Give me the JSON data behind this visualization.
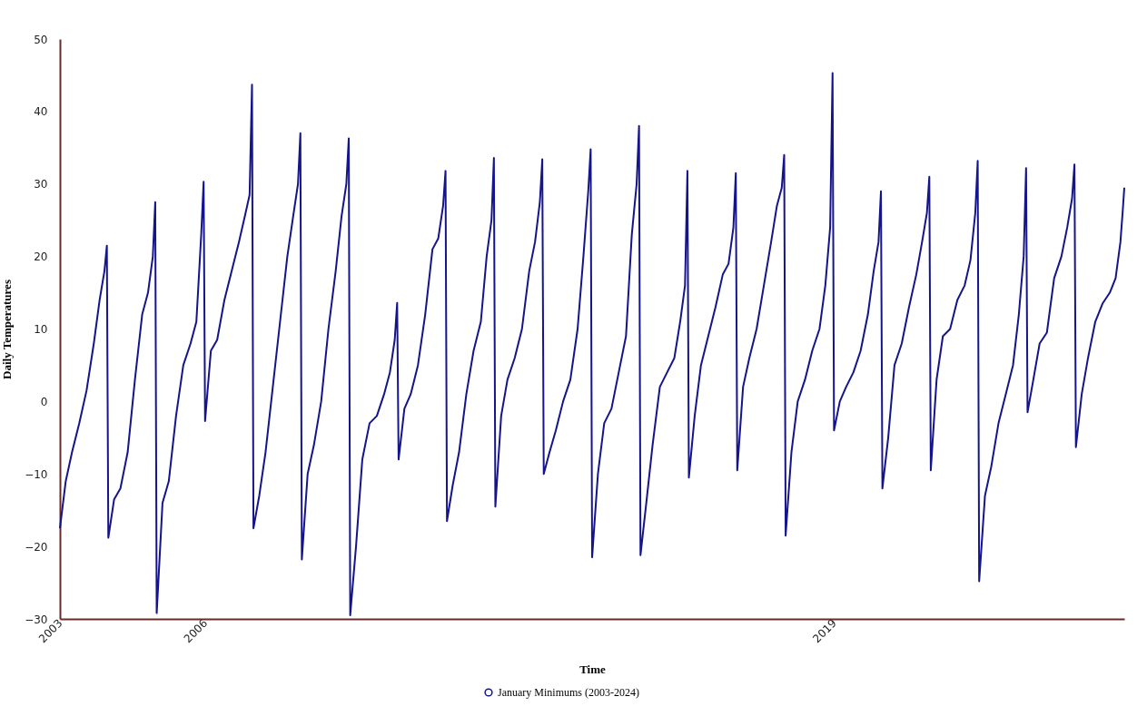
{
  "chart_data": {
    "type": "line",
    "xlabel": "Time",
    "ylabel": "Daily Temperatures",
    "xlim": [
      2003,
      2025
    ],
    "xticks": [
      2003,
      2006,
      2019
    ],
    "ylim": [
      -30,
      50
    ],
    "yticks": [
      -30,
      -20,
      -10,
      0,
      10,
      20,
      30,
      40,
      50
    ],
    "grid": false,
    "legend": "bottom",
    "line_style": "solid",
    "series": [
      {
        "name": "January Minimums (2003-2024)",
        "color": "#14148c",
        "x": [
          2003,
          2003.12,
          2003.25,
          2003.4,
          2003.55,
          2003.7,
          2003.82,
          2003.92,
          2003.97,
          2004,
          2004.12,
          2004.25,
          2004.4,
          2004.55,
          2004.7,
          2004.82,
          2004.92,
          2004.97,
          2005,
          2005.12,
          2005.25,
          2005.4,
          2005.55,
          2005.7,
          2005.82,
          2005.92,
          2005.97,
          2006,
          2006.12,
          2006.25,
          2006.4,
          2006.55,
          2006.7,
          2006.82,
          2006.92,
          2006.97,
          2007,
          2007.12,
          2007.25,
          2007.4,
          2007.55,
          2007.7,
          2007.82,
          2007.92,
          2007.97,
          2008,
          2008.12,
          2008.25,
          2008.4,
          2008.55,
          2008.7,
          2008.82,
          2008.92,
          2008.97,
          2009,
          2009.12,
          2009.25,
          2009.4,
          2009.55,
          2009.7,
          2009.82,
          2009.92,
          2009.97,
          2010,
          2010.12,
          2010.25,
          2010.4,
          2010.55,
          2010.7,
          2010.82,
          2010.92,
          2010.97,
          2011,
          2011.12,
          2011.25,
          2011.4,
          2011.55,
          2011.7,
          2011.82,
          2011.92,
          2011.97,
          2012,
          2012.12,
          2012.25,
          2012.4,
          2012.55,
          2012.7,
          2012.82,
          2012.92,
          2012.97,
          2013,
          2013.12,
          2013.25,
          2013.4,
          2013.55,
          2013.7,
          2013.82,
          2013.92,
          2013.97,
          2014,
          2014.12,
          2014.25,
          2014.4,
          2014.55,
          2014.7,
          2014.82,
          2014.92,
          2014.97,
          2015,
          2015.12,
          2015.25,
          2015.4,
          2015.55,
          2015.7,
          2015.82,
          2015.92,
          2015.97,
          2016,
          2016.12,
          2016.25,
          2016.4,
          2016.55,
          2016.7,
          2016.82,
          2016.92,
          2016.97,
          2017,
          2017.12,
          2017.25,
          2017.4,
          2017.55,
          2017.7,
          2017.82,
          2017.92,
          2017.97,
          2018,
          2018.12,
          2018.25,
          2018.4,
          2018.55,
          2018.7,
          2018.82,
          2018.92,
          2018.97,
          2019,
          2019.12,
          2019.25,
          2019.4,
          2019.55,
          2019.7,
          2019.82,
          2019.92,
          2019.97,
          2020,
          2020.12,
          2020.25,
          2020.4,
          2020.55,
          2020.7,
          2020.82,
          2020.92,
          2020.97,
          2021,
          2021.12,
          2021.25,
          2021.4,
          2021.55,
          2021.7,
          2021.82,
          2021.92,
          2021.97,
          2022,
          2022.12,
          2022.25,
          2022.4,
          2022.55,
          2022.7,
          2022.82,
          2022.92,
          2022.97,
          2023,
          2023.12,
          2023.25,
          2023.4,
          2023.55,
          2023.7,
          2023.82,
          2023.92,
          2023.97,
          2024,
          2024.12,
          2024.25,
          2024.4,
          2024.55,
          2024.7,
          2024.82,
          2024.92,
          2024.97,
          2025
        ],
        "values": [
          -17.5,
          -11,
          -7,
          -3,
          1.5,
          8,
          14,
          18,
          21.5,
          -18.8,
          -13.5,
          -12,
          -7,
          3,
          12,
          15,
          20,
          27.5,
          -29.2,
          -14,
          -11,
          -2,
          5,
          8,
          11,
          23,
          30.3,
          -2.7,
          7,
          8.5,
          14,
          18,
          22,
          25.5,
          28.5,
          43.7,
          -17.5,
          -13,
          -7,
          2,
          11,
          20,
          25.5,
          30,
          37,
          -21.8,
          -10,
          -6,
          0,
          10,
          18,
          25.5,
          30,
          36.3,
          -29.5,
          -20,
          -8,
          -3,
          -2,
          1,
          4,
          8.5,
          13.6,
          -8,
          -1,
          1,
          5,
          12,
          21,
          22.5,
          27,
          31.8,
          -16.5,
          -11.5,
          -7,
          1,
          7,
          11,
          20,
          25,
          33.6,
          -14.5,
          -2,
          3,
          6,
          10,
          18,
          22,
          27.5,
          33.4,
          -10,
          -7,
          -4,
          0,
          3,
          10,
          20,
          29,
          34.8,
          -21.5,
          -10,
          -3,
          -1,
          4,
          9,
          23,
          30,
          38,
          -21.2,
          -14,
          -6,
          2,
          4,
          6,
          11,
          16,
          31.8,
          -10.5,
          -2,
          5,
          9,
          13,
          17.5,
          19,
          24,
          31.5,
          -9.5,
          2,
          6,
          10,
          16,
          22,
          27,
          29.5,
          34,
          -18.5,
          -7,
          0,
          3,
          7,
          10,
          16,
          24,
          45.3,
          -4,
          0,
          2,
          4,
          7,
          12,
          18,
          22,
          29,
          -12,
          -5,
          5,
          8,
          13,
          17.5,
          22,
          26,
          31,
          -9.5,
          3,
          9,
          10,
          14,
          16,
          19.5,
          26,
          33.2,
          -24.8,
          -13,
          -9,
          -3,
          1,
          5,
          12,
          20,
          32.2,
          -1.5,
          3,
          8,
          9.5,
          17,
          20,
          24,
          28,
          32.7,
          -6.3,
          1,
          6,
          11,
          13.5,
          15,
          17,
          22,
          26.5,
          29.5
        ]
      }
    ]
  }
}
